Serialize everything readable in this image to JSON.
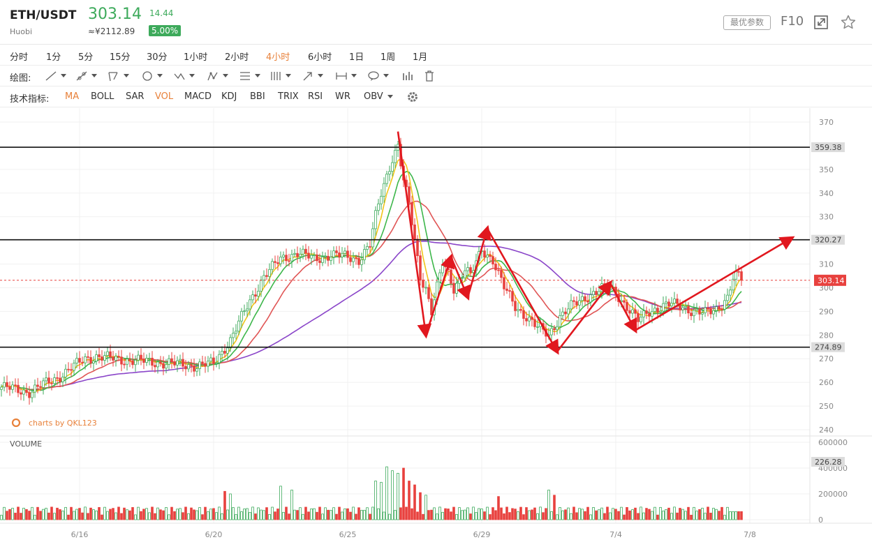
{
  "header": {
    "symbol": "ETH/USDT",
    "exchange": "Huobi",
    "price": "303.14",
    "cny_price": "≈¥2112.89",
    "change": "14.44",
    "change_pct": "5.00%",
    "params_label": "最优参数",
    "f10_label": "F10",
    "up_color": "#3daa5b"
  },
  "timeframes": [
    {
      "label": "分时",
      "active": false
    },
    {
      "label": "1分",
      "active": false
    },
    {
      "label": "5分",
      "active": false
    },
    {
      "label": "15分",
      "active": false
    },
    {
      "label": "30分",
      "active": false
    },
    {
      "label": "1小时",
      "active": false
    },
    {
      "label": "2小时",
      "active": false
    },
    {
      "label": "4小时",
      "active": true
    },
    {
      "label": "6小时",
      "active": false
    },
    {
      "label": "1日",
      "active": false
    },
    {
      "label": "1周",
      "active": false
    },
    {
      "label": "1月",
      "active": false
    }
  ],
  "drawing_label": "绘图:",
  "drawing_tools": [
    "line-tool-icon",
    "ray-tool-icon",
    "channel-tool-icon",
    "circle-tool-icon",
    "wave-tool-icon",
    "pattern-tool-icon",
    "fibonacci-tool-icon",
    "gann-tool-icon",
    "arrow-tool-icon",
    "measure-tool-icon",
    "text-tool-icon",
    "bar-pattern-icon",
    "trash-icon"
  ],
  "indicators_label": "技术指标:",
  "indicators": [
    {
      "label": "MA",
      "active": true
    },
    {
      "label": "BOLL",
      "active": false
    },
    {
      "label": "SAR",
      "active": false
    },
    {
      "label": "VOL",
      "active": true
    },
    {
      "label": "MACD",
      "active": false
    },
    {
      "label": "KDJ",
      "active": false
    },
    {
      "label": "BBI",
      "active": false
    },
    {
      "label": "TRIX",
      "active": false
    },
    {
      "label": "RSI",
      "active": false
    },
    {
      "label": "WR",
      "active": false
    },
    {
      "label": "OBV",
      "active": false
    }
  ],
  "chart_data": {
    "type": "candlestick",
    "watermark": "charts by QKL123",
    "price_axis": {
      "min": 240,
      "max": 370,
      "ticks": [
        240,
        250,
        260,
        270,
        280,
        290,
        300,
        310,
        320,
        330,
        340,
        350,
        360,
        370
      ]
    },
    "x_labels": [
      {
        "label": "6/16",
        "index": 28
      },
      {
        "label": "6/20",
        "index": 76
      },
      {
        "label": "6/25",
        "index": 124
      },
      {
        "label": "6/29",
        "index": 172
      },
      {
        "label": "7/4",
        "index": 220
      },
      {
        "label": "7/8",
        "index": 268
      }
    ],
    "levels": [
      {
        "value": 359.38,
        "label": "359.38"
      },
      {
        "value": 320.27,
        "label": "320.27"
      },
      {
        "value": 274.89,
        "label": "274.89"
      }
    ],
    "last_price": {
      "value": 303.14,
      "label": "303.14",
      "color": "#e8413e"
    },
    "price_path": [
      [
        0,
        258
      ],
      [
        10,
        256
      ],
      [
        20,
        262
      ],
      [
        30,
        270
      ],
      [
        34,
        271
      ],
      [
        40,
        270
      ],
      [
        50,
        269
      ],
      [
        60,
        268
      ],
      [
        70,
        267
      ],
      [
        76,
        268
      ],
      [
        82,
        278
      ],
      [
        88,
        292
      ],
      [
        94,
        305
      ],
      [
        100,
        312
      ],
      [
        106,
        315
      ],
      [
        112,
        312
      ],
      [
        118,
        314
      ],
      [
        124,
        313
      ],
      [
        128,
        312
      ],
      [
        132,
        318
      ],
      [
        134,
        330
      ],
      [
        136,
        340
      ],
      [
        140,
        355
      ],
      [
        142,
        360
      ],
      [
        144,
        345
      ],
      [
        146,
        335
      ],
      [
        148,
        320
      ],
      [
        150,
        305
      ],
      [
        152,
        300
      ],
      [
        154,
        290
      ],
      [
        156,
        300
      ],
      [
        158,
        310
      ],
      [
        160,
        306
      ],
      [
        162,
        300
      ],
      [
        166,
        308
      ],
      [
        168,
        305
      ],
      [
        172,
        316
      ],
      [
        176,
        312
      ],
      [
        180,
        300
      ],
      [
        184,
        292
      ],
      [
        188,
        288
      ],
      [
        192,
        283
      ],
      [
        196,
        280
      ],
      [
        200,
        288
      ],
      [
        204,
        292
      ],
      [
        208,
        295
      ],
      [
        212,
        298
      ],
      [
        216,
        300
      ],
      [
        220,
        298
      ],
      [
        224,
        292
      ],
      [
        228,
        286
      ],
      [
        232,
        290
      ],
      [
        236,
        292
      ],
      [
        240,
        293
      ],
      [
        244,
        292
      ],
      [
        248,
        290
      ],
      [
        252,
        289
      ],
      [
        256,
        291
      ],
      [
        260,
        296
      ],
      [
        262,
        304
      ],
      [
        264,
        305
      ],
      [
        265,
        303
      ]
    ],
    "ma_series": [
      {
        "color": "#f0c419",
        "period": 5
      },
      {
        "color": "#3cb64a",
        "period": 10
      },
      {
        "color": "#e05555",
        "period": 20
      },
      {
        "color": "#8a45c9",
        "period": 60,
        "start_index": 14
      }
    ],
    "arrows": [
      [
        [
          142,
          366
        ],
        [
          152,
          280
        ]
      ],
      [
        [
          152,
          280
        ],
        [
          161,
          313
        ]
      ],
      [
        [
          161,
          313
        ],
        [
          167,
          296
        ]
      ],
      [
        [
          167,
          296
        ],
        [
          174,
          325
        ]
      ],
      [
        [
          174,
          325
        ],
        [
          199,
          273
        ]
      ],
      [
        [
          199,
          273
        ],
        [
          218,
          302
        ]
      ],
      [
        [
          218,
          302
        ],
        [
          227,
          282
        ]
      ],
      [
        [
          227,
          282
        ],
        [
          283,
          321
        ]
      ]
    ],
    "arrow_color": "#e1171e",
    "volume": {
      "label": "VOLUME",
      "ticks": [
        0,
        200000,
        400000,
        600000
      ],
      "tick_labels": [
        "0",
        "200000",
        "400000",
        "600000"
      ],
      "current": 226.28,
      "current_label": "226.28",
      "max": 600000,
      "spikes": [
        [
          134,
          300000
        ],
        [
          136,
          290000
        ],
        [
          138,
          410000
        ],
        [
          140,
          380000
        ],
        [
          142,
          360000
        ],
        [
          144,
          400000
        ],
        [
          146,
          300000
        ],
        [
          148,
          270000
        ],
        [
          150,
          210000
        ],
        [
          152,
          190000
        ],
        [
          80,
          220000
        ],
        [
          82,
          200000
        ],
        [
          100,
          260000
        ],
        [
          104,
          230000
        ],
        [
          178,
          180000
        ],
        [
          196,
          230000
        ],
        [
          198,
          190000
        ]
      ],
      "base_level": 70000
    }
  }
}
